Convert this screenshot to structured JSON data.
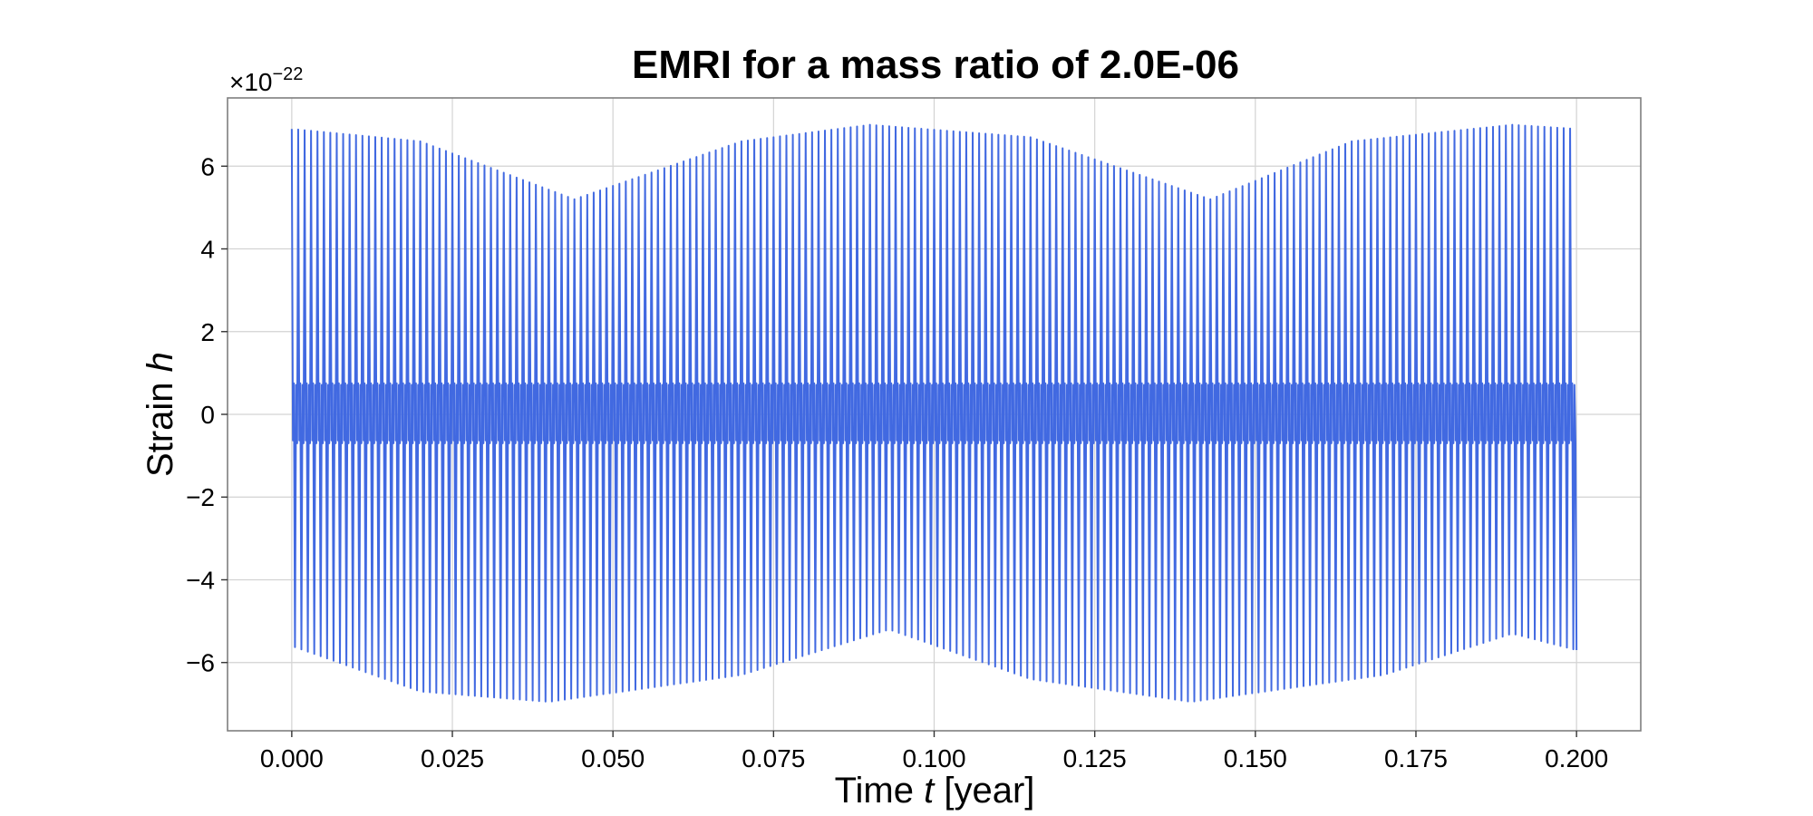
{
  "chart_data": {
    "type": "line",
    "title": "EMRI for a mass ratio of 2.0E-06",
    "xlabel_prefix": "Time ",
    "xlabel_var": "t",
    "xlabel_suffix": " [year]",
    "ylabel_prefix": "Strain ",
    "ylabel_var": "h",
    "y_offset_base": "×10",
    "y_offset_exp": "−22",
    "xlim": [
      -0.01,
      0.21
    ],
    "ylim": [
      -7.65,
      7.65
    ],
    "xticks": [
      0.0,
      0.025,
      0.05,
      0.075,
      0.1,
      0.125,
      0.15,
      0.175,
      0.2
    ],
    "xtick_labels": [
      "0.000",
      "0.025",
      "0.050",
      "0.075",
      "0.100",
      "0.125",
      "0.150",
      "0.175",
      "0.200"
    ],
    "yticks": [
      -6,
      -4,
      -2,
      0,
      2,
      4,
      6
    ],
    "ytick_labels": [
      "−6",
      "−4",
      "−2",
      "0",
      "2",
      "4",
      "6"
    ],
    "grid": true,
    "series": [
      {
        "color": "#4169e1",
        "x_range": [
          0.0,
          0.2
        ],
        "cycles": 200,
        "envelope_upper": [
          [
            0.0,
            6.9
          ],
          [
            0.02,
            6.6
          ],
          [
            0.044,
            5.2
          ],
          [
            0.07,
            6.6
          ],
          [
            0.09,
            7.0
          ],
          [
            0.115,
            6.7
          ],
          [
            0.143,
            5.2
          ],
          [
            0.165,
            6.6
          ],
          [
            0.19,
            7.0
          ],
          [
            0.2,
            6.9
          ]
        ],
        "envelope_lower": [
          [
            0.0,
            -5.6
          ],
          [
            0.02,
            -6.7
          ],
          [
            0.04,
            -6.95
          ],
          [
            0.07,
            -6.3
          ],
          [
            0.093,
            -5.2
          ],
          [
            0.115,
            -6.4
          ],
          [
            0.14,
            -6.95
          ],
          [
            0.17,
            -6.3
          ],
          [
            0.19,
            -5.3
          ],
          [
            0.2,
            -5.7
          ]
        ],
        "core_upper": 0.75,
        "core_lower": -0.7
      }
    ]
  }
}
